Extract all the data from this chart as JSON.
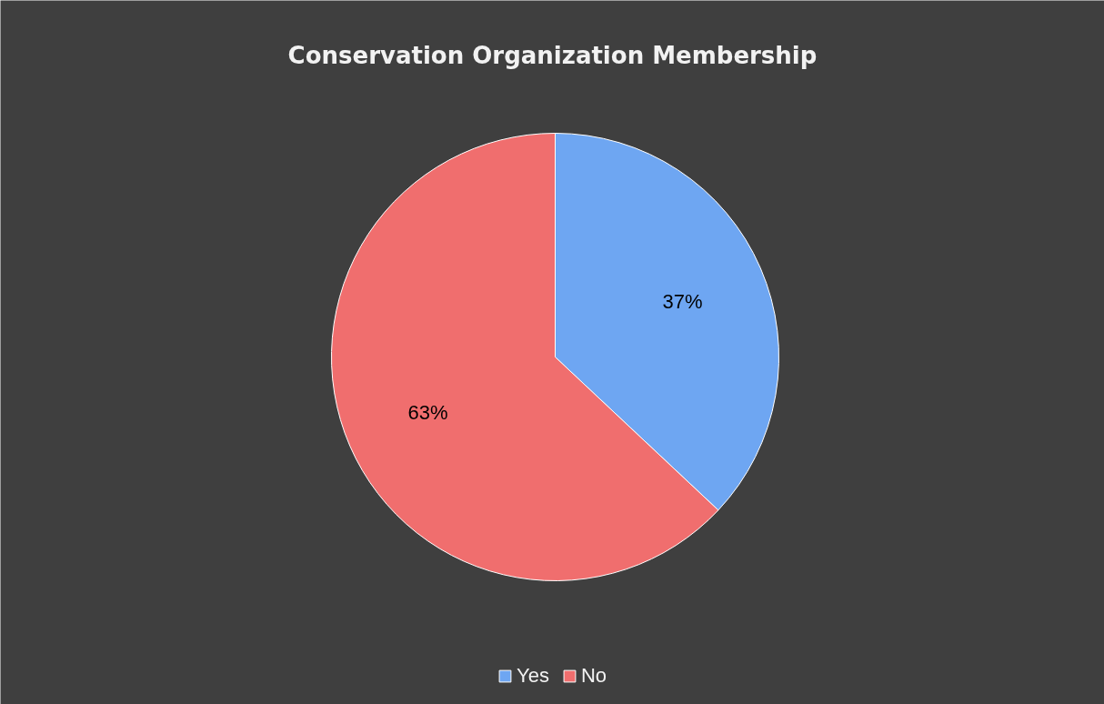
{
  "chart_data": {
    "type": "pie",
    "title": "Conservation Organization Membership",
    "categories": [
      "Yes",
      "No"
    ],
    "values": [
      37,
      63
    ],
    "colors": [
      "#6ea6f2",
      "#f06e6e"
    ],
    "value_labels": [
      "37%",
      "63%"
    ],
    "legend": "bottom"
  }
}
